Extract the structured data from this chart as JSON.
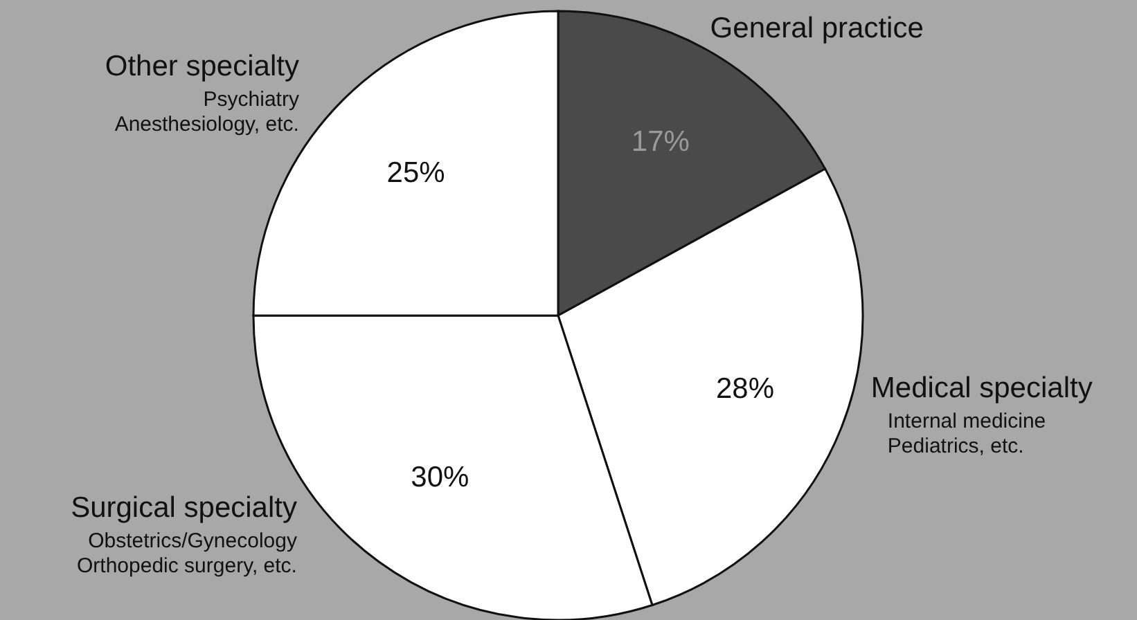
{
  "chart_data": {
    "type": "pie",
    "categories": [
      "General practice",
      "Medical specialty",
      "Surgical specialty",
      "Other specialty"
    ],
    "values": [
      17,
      28,
      30,
      25
    ],
    "value_labels": [
      "17%",
      "28%",
      "30%",
      "25%"
    ],
    "colors": [
      "#4a4a4a",
      "#ffffff",
      "#ffffff",
      "#ffffff"
    ],
    "annotations": [
      {
        "text": "Internal medicine\nPediatrics, etc.",
        "x": "Medical specialty"
      },
      {
        "text": "Obstetrics/Gynecology\nOrthopedic surgery, etc.",
        "x": "Surgical specialty"
      },
      {
        "text": "Psychiatry\nAnesthesiology, etc.",
        "x": "Other specialty"
      }
    ]
  }
}
